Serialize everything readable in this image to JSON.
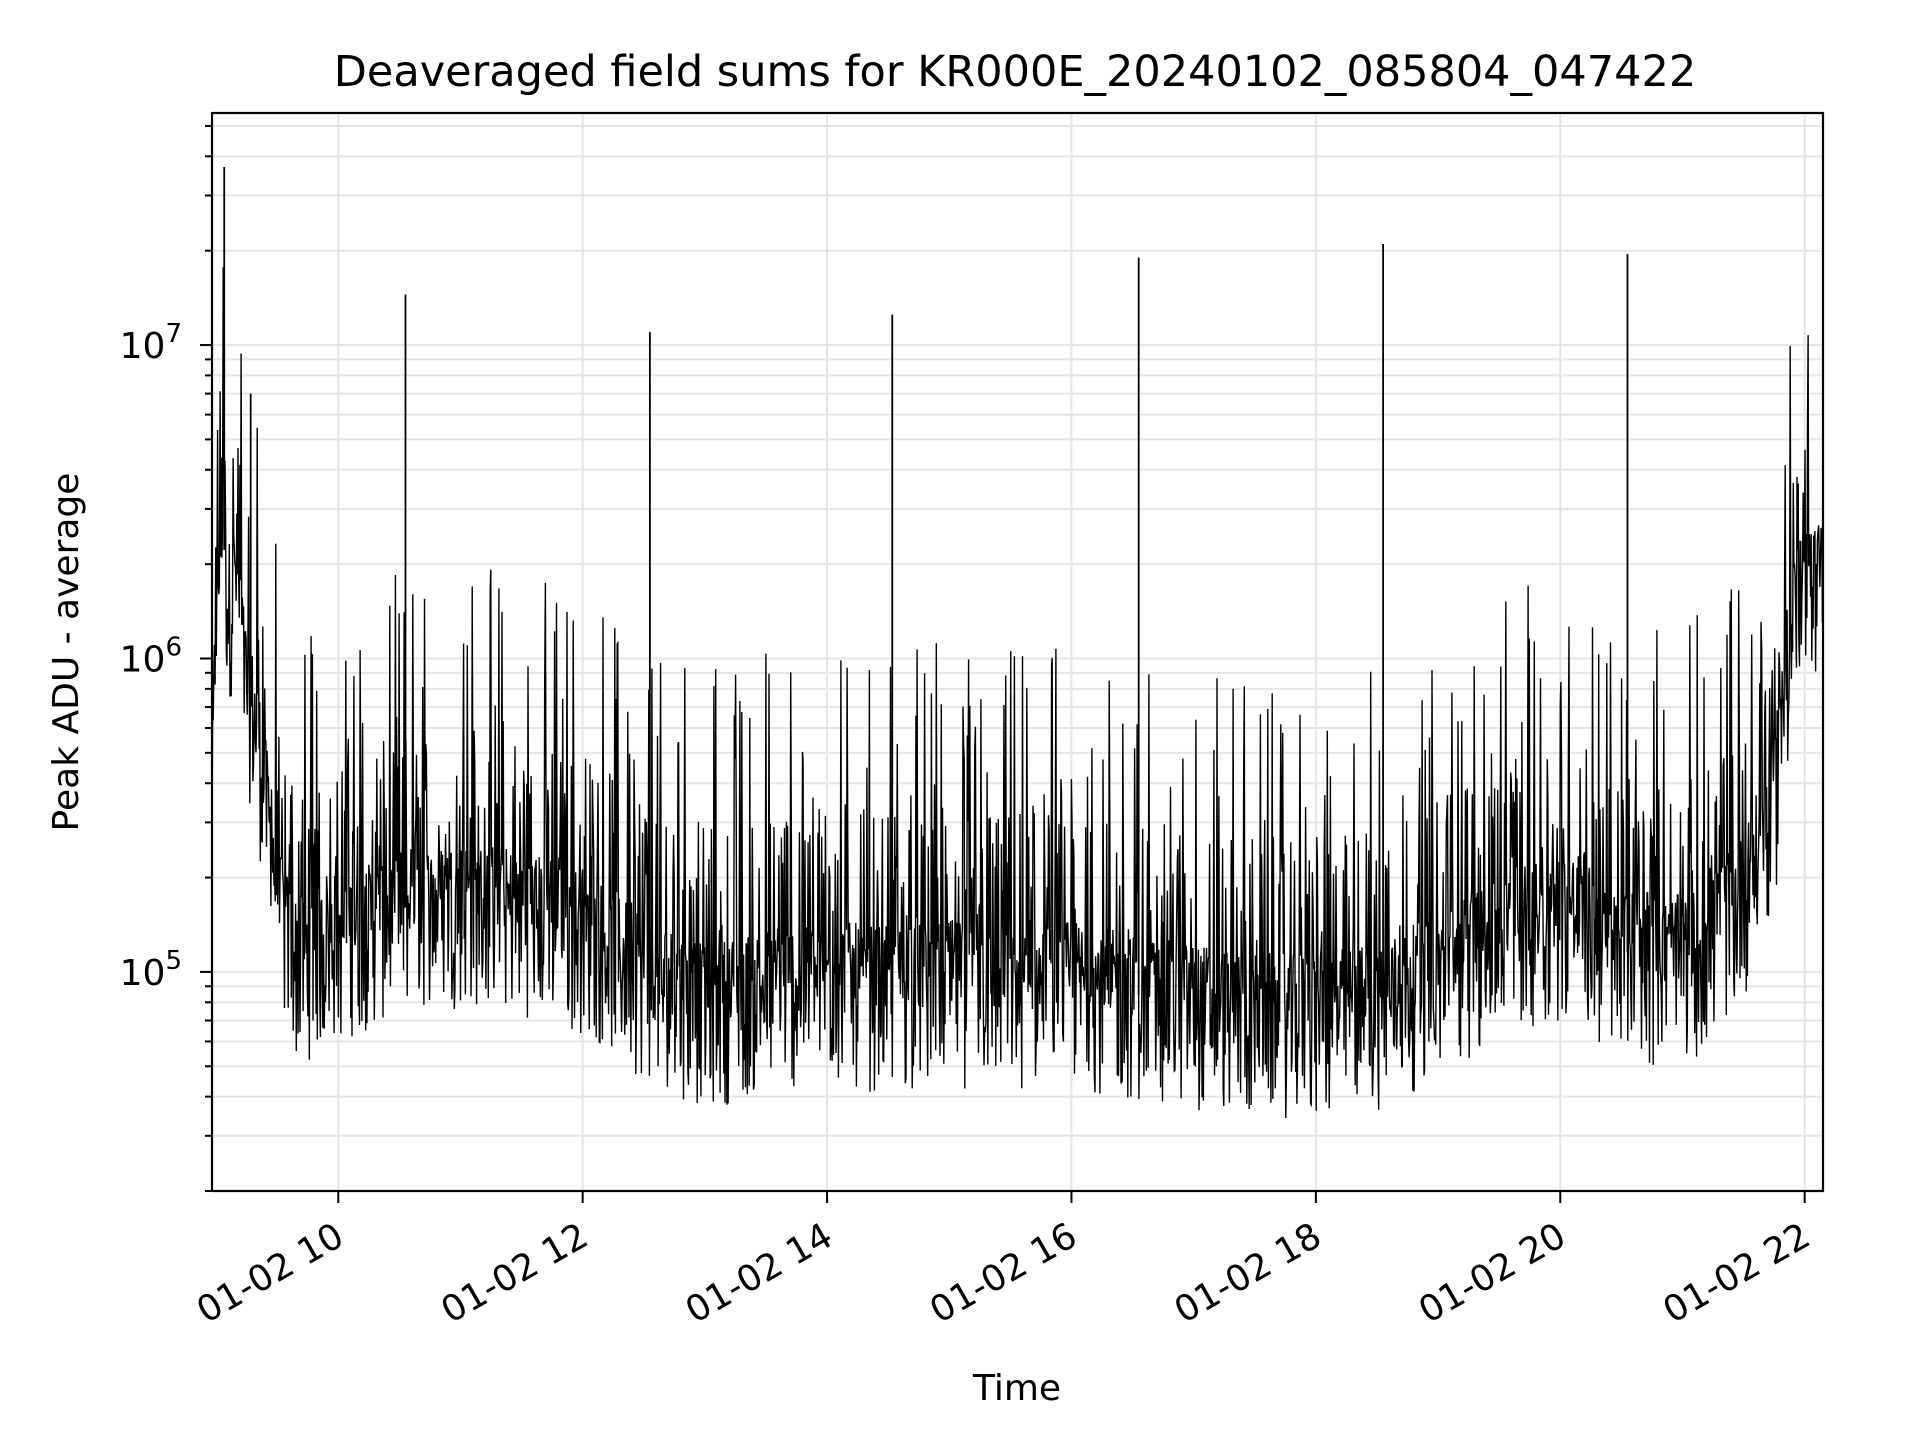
{
  "chart_data": {
    "type": "line",
    "title": "Deaveraged field sums for KR000E_20240102_085804_047422",
    "xlabel": "Time",
    "ylabel": "Peak ADU - average",
    "yscale": "log",
    "xlim": [
      "2024-01-02 08:58",
      "2024-01-02 22:09"
    ],
    "ylim": [
      20000,
      55000000
    ],
    "grid": true,
    "line_color": "#000000",
    "grid_color": "#e5e5e5",
    "x_ticks": [
      {
        "x": "2024-01-02 10:00",
        "label": "01-02 10"
      },
      {
        "x": "2024-01-02 12:00",
        "label": "01-02 12"
      },
      {
        "x": "2024-01-02 14:00",
        "label": "01-02 14"
      },
      {
        "x": "2024-01-02 16:00",
        "label": "01-02 16"
      },
      {
        "x": "2024-01-02 18:00",
        "label": "01-02 18"
      },
      {
        "x": "2024-01-02 20:00",
        "label": "01-02 20"
      },
      {
        "x": "2024-01-02 22:00",
        "label": "01-02 22"
      }
    ],
    "y_ticks": [
      {
        "y": 100000,
        "base": "10",
        "exp": "5"
      },
      {
        "y": 1000000,
        "base": "10",
        "exp": "6"
      },
      {
        "y": 10000000,
        "base": "10",
        "exp": "7"
      }
    ],
    "series": [
      {
        "points": [
          [
            "2024-01-02 08:58",
            350000
          ],
          [
            "2024-01-02 09:00",
            1400000
          ],
          [
            "2024-01-02 09:03",
            2700000
          ],
          [
            "2024-01-02 09:06",
            1500000
          ],
          [
            "2024-01-02 09:10",
            2000000
          ],
          [
            "2024-01-02 09:14",
            900000
          ],
          [
            "2024-01-02 09:20",
            600000
          ],
          [
            "2024-01-02 09:26",
            300000
          ],
          [
            "2024-01-02 09:32",
            150000
          ],
          [
            "2024-01-02 09:40",
            110000
          ],
          [
            "2024-01-02 10:00",
            130000
          ],
          [
            "2024-01-02 10:30",
            160000
          ],
          [
            "2024-01-02 11:00",
            170000
          ],
          [
            "2024-01-02 11:30",
            160000
          ],
          [
            "2024-01-02 12:00",
            140000
          ],
          [
            "2024-01-02 12:30",
            100000
          ],
          [
            "2024-01-02 13:00",
            80000
          ],
          [
            "2024-01-02 13:30",
            90000
          ],
          [
            "2024-01-02 14:00",
            95000
          ],
          [
            "2024-01-02 14:30",
            90000
          ],
          [
            "2024-01-02 15:00",
            95000
          ],
          [
            "2024-01-02 15:30",
            90000
          ],
          [
            "2024-01-02 16:00",
            95000
          ],
          [
            "2024-01-02 16:30",
            85000
          ],
          [
            "2024-01-02 17:00",
            80000
          ],
          [
            "2024-01-02 17:30",
            75000
          ],
          [
            "2024-01-02 18:00",
            75000
          ],
          [
            "2024-01-02 18:30",
            80000
          ],
          [
            "2024-01-02 19:00",
            100000
          ],
          [
            "2024-01-02 19:30",
            130000
          ],
          [
            "2024-01-02 19:50",
            150000
          ],
          [
            "2024-01-02 20:10",
            160000
          ],
          [
            "2024-01-02 20:20",
            120000
          ],
          [
            "2024-01-02 20:50",
            110000
          ],
          [
            "2024-01-02 21:10",
            120000
          ],
          [
            "2024-01-02 21:30",
            180000
          ],
          [
            "2024-01-02 21:45",
            350000
          ],
          [
            "2024-01-02 21:55",
            1500000
          ],
          [
            "2024-01-02 22:09",
            1800000
          ]
        ]
      }
    ],
    "spikes": [
      [
        "2024-01-02 09:04",
        37000000
      ],
      [
        "2024-01-02 09:17",
        7000000
      ],
      [
        "2024-01-02 10:33",
        14500000
      ],
      [
        "2024-01-02 12:33",
        11000000
      ],
      [
        "2024-01-02 14:32",
        12500000
      ],
      [
        "2024-01-02 16:33",
        19000000
      ],
      [
        "2024-01-02 18:33",
        21000000
      ],
      [
        "2024-01-02 20:33",
        19500000
      ]
    ]
  }
}
